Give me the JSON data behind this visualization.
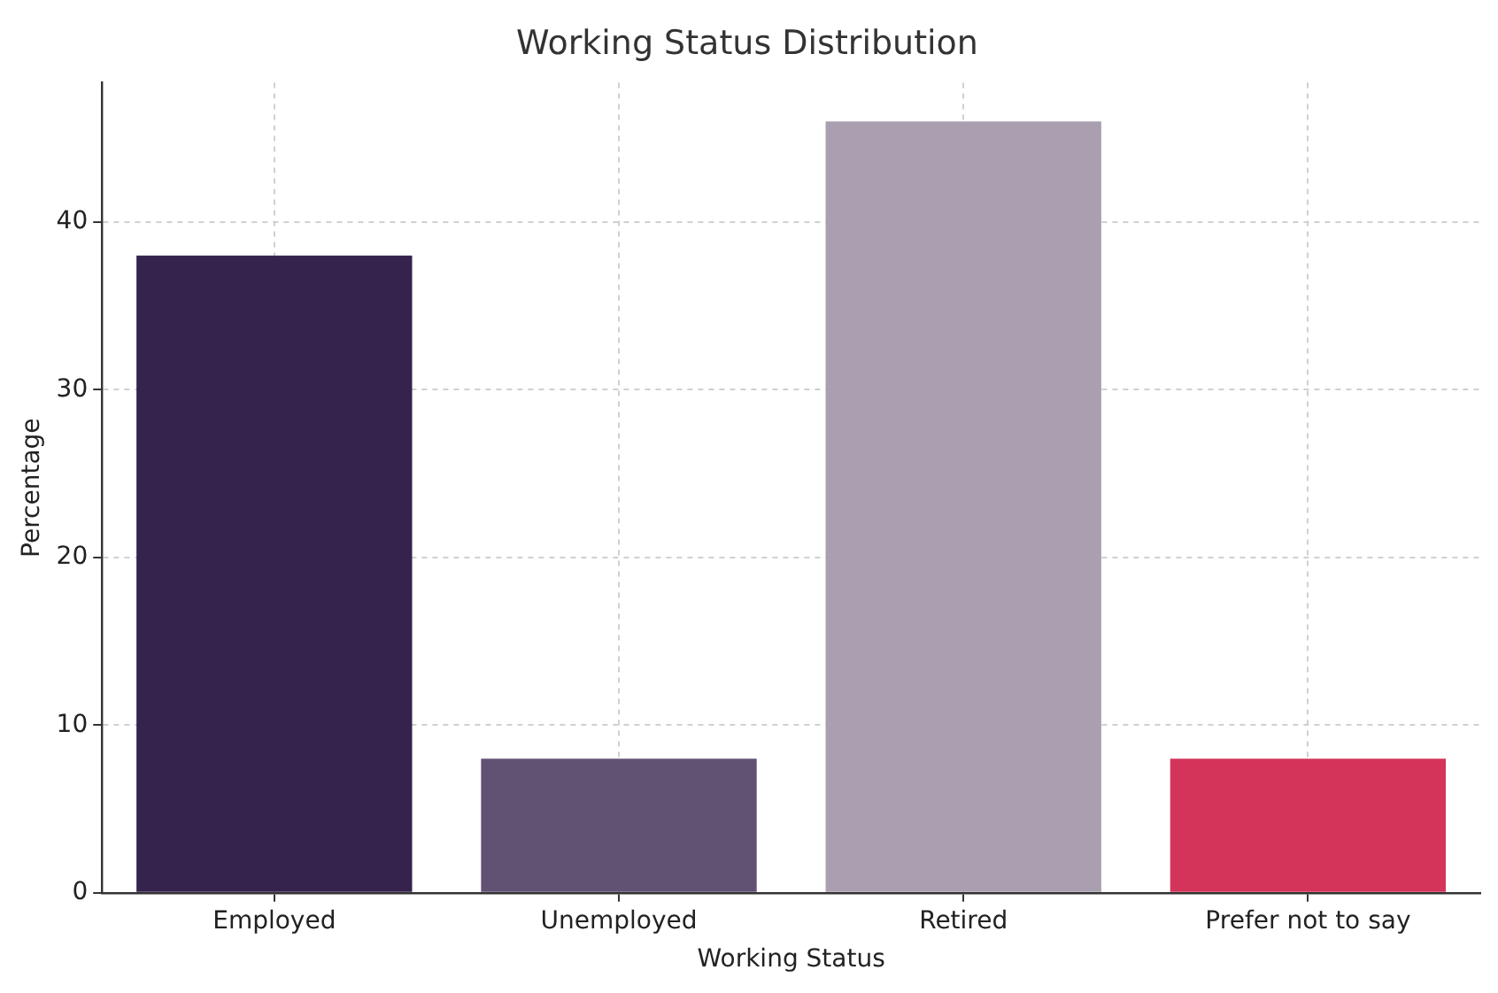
{
  "chart_data": {
    "type": "bar",
    "title": "Working Status Distribution",
    "xlabel": "Working Status",
    "ylabel": "Percentage",
    "categories": [
      "Employed",
      "Unemployed",
      "Retired",
      "Prefer not to say"
    ],
    "values": [
      38,
      8,
      46,
      8
    ],
    "colors": [
      "#35234d",
      "#615274",
      "#aa9fb1",
      "#d5345a"
    ],
    "ylim": [
      0,
      48.3
    ],
    "yticks": [
      0,
      10,
      20,
      30,
      40
    ],
    "grid": true
  }
}
